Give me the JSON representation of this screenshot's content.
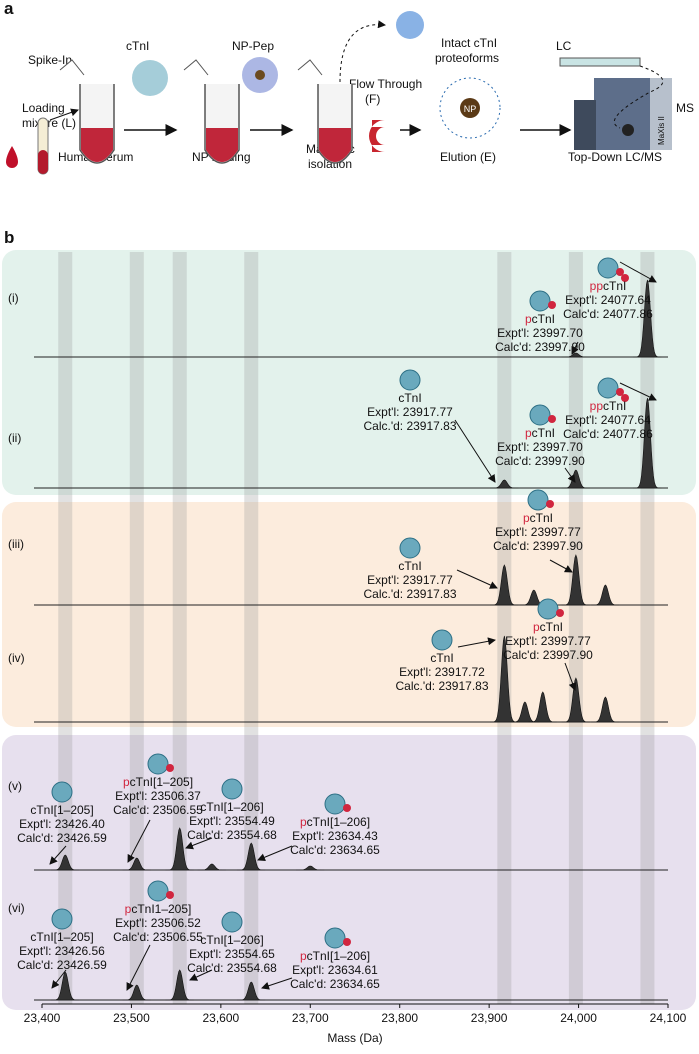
{
  "figure_a": {
    "label": "a",
    "spike_in": "Spike-In",
    "ctni": "cTnI",
    "loading": [
      "Loading",
      "mixure (L)"
    ],
    "human_serum": "Human serum",
    "np_pep": "NP-Pep",
    "np_binding": "NP binding",
    "flow_through": [
      "Flow Through",
      "(F)"
    ],
    "magnetic": [
      "Magnetic",
      "isolation"
    ],
    "intact": [
      "Intact cTnI",
      "proteoforms"
    ],
    "np": "NP",
    "elution": "Elution (E)",
    "lc": "LC",
    "ms": "MS",
    "instrument": "MaXis II",
    "top_down": "Top-Down LC/MS"
  },
  "chart_data": {
    "type": "spectrum",
    "label": "b",
    "xlabel": "Mass (Da)",
    "xlim": [
      23400,
      24100
    ],
    "xticks": [
      {
        "value": 23400,
        "label": "23,400"
      },
      {
        "value": 23500,
        "label": "23,500"
      },
      {
        "value": 23600,
        "label": "23,600"
      },
      {
        "value": 23700,
        "label": "23,700"
      },
      {
        "value": 23800,
        "label": "23,800"
      },
      {
        "value": 23900,
        "label": "23,900"
      },
      {
        "value": 24000,
        "label": "24,000"
      },
      {
        "value": 24100,
        "label": "24,100"
      }
    ],
    "highlights": [
      23426,
      23506,
      23554,
      23634,
      23917,
      23997,
      24077
    ],
    "rows": [
      {
        "name": "(i)",
        "x": [
          23997,
          24077
        ],
        "values": [
          4,
          77
        ],
        "annotations": [
          {
            "prefix": "p",
            "name": "cTnI",
            "expt": "Expt'l: 23997.70",
            "calc": "Calc'd: 23997.90"
          },
          {
            "prefix": "pp",
            "name": "cTnI",
            "expt": "Expt'l: 24077.64",
            "calc": "Calc'd: 24077.86"
          }
        ]
      },
      {
        "name": "(ii)",
        "x": [
          23917,
          23997,
          24077
        ],
        "values": [
          8,
          18,
          90
        ],
        "annotations": [
          {
            "prefix": "",
            "name": "cTnI",
            "expt": "Expt'l: 23917.77",
            "calc": "Calc.'d: 23917.83"
          },
          {
            "prefix": "p",
            "name": "cTnI",
            "expt": "Expt'l: 23997.70",
            "calc": "Calc'd: 23997.90"
          },
          {
            "prefix": "pp",
            "name": "cTnI",
            "expt": "Expt'l: 24077.64",
            "calc": "Calc'd: 24077.86"
          }
        ]
      },
      {
        "name": "(iii)",
        "x": [
          23917,
          23950,
          23997,
          24030
        ],
        "values": [
          40,
          15,
          50,
          20
        ],
        "annotations": [
          {
            "prefix": "",
            "name": "cTnI",
            "expt": "Expt'l: 23917.77",
            "calc": "Calc.'d: 23917.83"
          },
          {
            "prefix": "p",
            "name": "cTnI",
            "expt": "Expt'l: 23997.77",
            "calc": "Calc'd: 23997.90"
          }
        ]
      },
      {
        "name": "(iv)",
        "x": [
          23917,
          23940,
          23960,
          23997,
          24030
        ],
        "values": [
          86,
          20,
          30,
          44,
          25
        ],
        "annotations": [
          {
            "prefix": "",
            "name": "cTnI",
            "expt": "Expt'l: 23917.72",
            "calc": "Calc.'d: 23917.83"
          },
          {
            "prefix": "p",
            "name": "cTnI",
            "expt": "Expt'l: 23997.77",
            "calc": "Calc'd: 23997.90"
          }
        ]
      },
      {
        "name": "(v)",
        "x": [
          23426,
          23506,
          23554,
          23590,
          23634,
          23700
        ],
        "values": [
          15,
          12,
          42,
          6,
          27,
          4
        ],
        "annotations": [
          {
            "prefix": "",
            "name": "cTnI[1–205]",
            "expt": "Expt'l: 23426.40",
            "calc": "Calc'd: 23426.59"
          },
          {
            "prefix": "p",
            "name": "cTnI[1–205]",
            "expt": "Expt'l: 23506.37",
            "calc": "Calc'd: 23506.55"
          },
          {
            "prefix": "",
            "name": "cTnI[1–206]",
            "expt": "Expt'l: 23554.49",
            "calc": "Calc'd: 23554.68"
          },
          {
            "prefix": "p",
            "name": "cTnI[1–206]",
            "expt": "Expt'l: 23634.43",
            "calc": "Calc'd: 23634.65"
          }
        ]
      },
      {
        "name": "(vi)",
        "x": [
          23426,
          23506,
          23554,
          23634
        ],
        "values": [
          28,
          15,
          30,
          18
        ],
        "annotations": [
          {
            "prefix": "",
            "name": "cTnI[1–205]",
            "expt": "Expt'l: 23426.56",
            "calc": "Calc'd: 23426.59"
          },
          {
            "prefix": "p",
            "name": "cTnI1–205]",
            "expt": "Expt'l: 23506.52",
            "calc": "Calc'd: 23506.55"
          },
          {
            "prefix": "",
            "name": "cTnI[1–206]",
            "expt": "Expt'l: 23554.65",
            "calc": "Calc'd: 23554.68"
          },
          {
            "prefix": "p",
            "name": "cTnI[1–206]",
            "expt": "Expt'l: 23634.61",
            "calc": "Calc'd: 23634.65"
          }
        ]
      }
    ]
  }
}
